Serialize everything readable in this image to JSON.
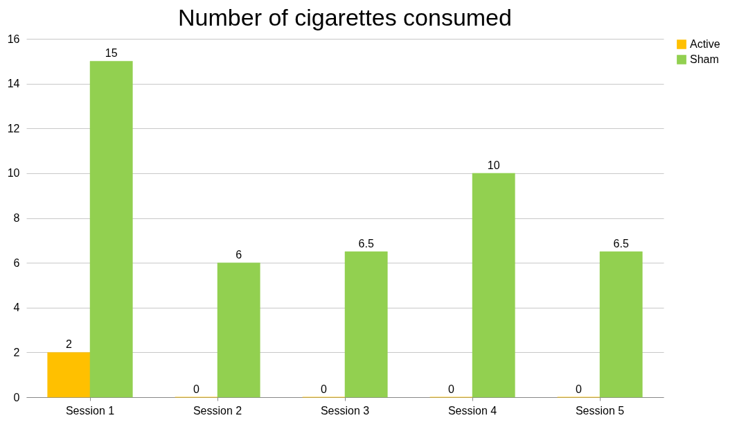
{
  "chart_data": {
    "type": "bar",
    "title": "Number of cigarettes consumed",
    "categories": [
      "Session 1",
      "Session 2",
      "Session 3",
      "Session 4",
      "Session 5"
    ],
    "series": [
      {
        "name": "Active",
        "color": "#ffc000",
        "values": [
          2,
          0,
          0,
          0,
          0
        ]
      },
      {
        "name": "Sham",
        "color": "#92d050",
        "values": [
          15,
          6,
          6.5,
          10,
          6.5
        ]
      }
    ],
    "ylim": [
      0,
      16
    ],
    "yticks": [
      0,
      2,
      4,
      6,
      8,
      10,
      12,
      14,
      16
    ],
    "grid": "y",
    "legend": "right",
    "data_labels": true
  }
}
